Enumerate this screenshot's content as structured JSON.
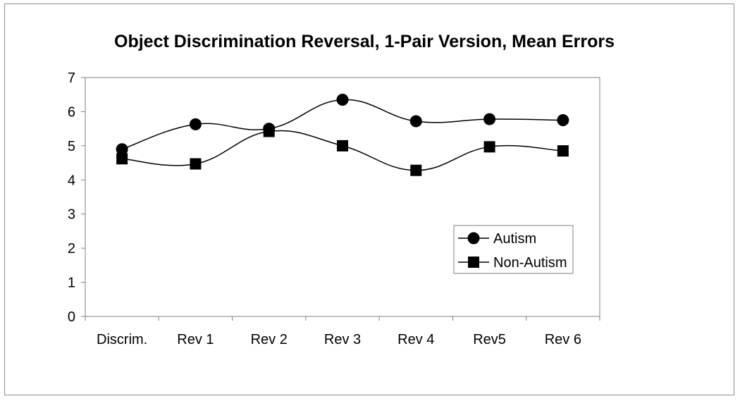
{
  "chart_data": {
    "type": "line",
    "title": "Object Discrimination Reversal, 1-Pair Version, Mean Errors",
    "xlabel": "",
    "ylabel": "",
    "categories": [
      "Discrim.",
      "Rev 1",
      "Rev 2",
      "Rev 3",
      "Rev 4",
      "Rev5",
      "Rev 6"
    ],
    "ylim": [
      0,
      7
    ],
    "yticks": [
      0,
      1,
      2,
      3,
      4,
      5,
      6,
      7
    ],
    "grid": false,
    "legend_position": "right",
    "smoothed": true,
    "series": [
      {
        "name": "Autism",
        "marker": "circle",
        "color": "#000000",
        "values": [
          4.9,
          5.63,
          5.5,
          6.35,
          5.72,
          5.78,
          5.75
        ]
      },
      {
        "name": "Non-Autism",
        "marker": "square",
        "color": "#000000",
        "values": [
          4.62,
          4.47,
          5.42,
          5.0,
          4.28,
          4.97,
          4.85
        ]
      }
    ]
  }
}
